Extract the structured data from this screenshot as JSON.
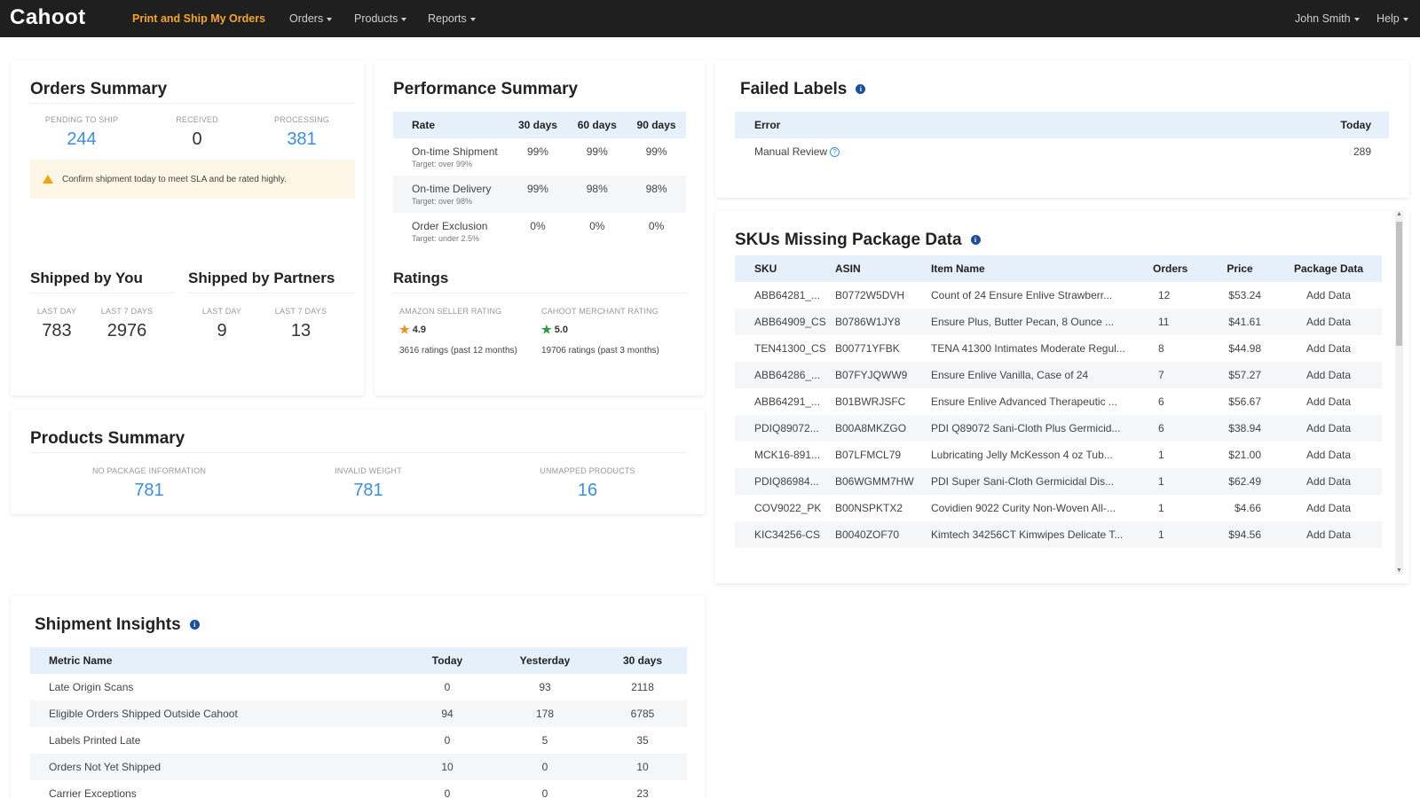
{
  "nav": {
    "logo": "Cahoot",
    "active": "Print and Ship My Orders",
    "orders": "Orders",
    "products": "Products",
    "reports": "Reports",
    "user": "John Smith",
    "help": "Help"
  },
  "orders_summary": {
    "title": "Orders Summary",
    "pending_label": "PENDING TO SHIP",
    "pending_value": "244",
    "received_label": "RECEIVED",
    "received_value": "0",
    "processing_label": "PROCESSING",
    "processing_value": "381",
    "alert": "Confirm shipment today to meet SLA and be rated highly."
  },
  "shipped": {
    "you_title": "Shipped by You",
    "partners_title": "Shipped by Partners",
    "last_day_label": "LAST DAY",
    "last_7_label": "LAST 7 DAYS",
    "you_last_day": "783",
    "you_last_7": "2976",
    "partners_last_day": "9",
    "partners_last_7": "13"
  },
  "performance": {
    "title": "Performance Summary",
    "headers": [
      "Rate",
      "30 days",
      "60 days",
      "90 days"
    ],
    "rows": [
      {
        "name": "On-time Shipment",
        "target": "Target: over 99%",
        "d30": "99%",
        "d60": "99%",
        "d90": "99%"
      },
      {
        "name": "On-time Delivery",
        "target": "Target: over 98%",
        "d30": "99%",
        "d60": "98%",
        "d90": "98%"
      },
      {
        "name": "Order Exclusion",
        "target": "Target: under 2.5%",
        "d30": "0%",
        "d60": "0%",
        "d90": "0%"
      }
    ]
  },
  "ratings": {
    "title": "Ratings",
    "amazon_label": "AMAZON SELLER RATING",
    "amazon_value": "4.9",
    "amazon_count": "3616 ratings (past 12 months)",
    "cahoot_label": "CAHOOT MERCHANT RATING",
    "cahoot_value": "5.0",
    "cahoot_count": "19706 ratings (past 3 months)"
  },
  "failed_labels": {
    "title": "Failed Labels",
    "headers": [
      "Error",
      "Today"
    ],
    "row_label": "Manual Review",
    "row_value": "289"
  },
  "skus_missing": {
    "title": "SKUs Missing Package Data",
    "headers": [
      "SKU",
      "ASIN",
      "Item Name",
      "Orders",
      "Price",
      "Package Data"
    ],
    "action": "Add Data",
    "rows": [
      {
        "sku": "ABB64281_...",
        "asin": "B0772W5DVH",
        "name": "Count of 24 Ensure Enlive Strawberr...",
        "orders": "12",
        "price": "$53.24"
      },
      {
        "sku": "ABB64909_CS",
        "asin": "B0786W1JY8",
        "name": "Ensure Plus, Butter Pecan, 8 Ounce ...",
        "orders": "11",
        "price": "$41.61"
      },
      {
        "sku": "TEN41300_CS",
        "asin": "B00771YFBK",
        "name": "TENA 41300 Intimates Moderate Regul...",
        "orders": "8",
        "price": "$44.98"
      },
      {
        "sku": "ABB64286_...",
        "asin": "B07FYJQWW9",
        "name": "Ensure Enlive Vanilla, Case of 24",
        "orders": "7",
        "price": "$57.27"
      },
      {
        "sku": "ABB64291_...",
        "asin": "B01BWRJSFC",
        "name": "Ensure Enlive Advanced Therapeutic ...",
        "orders": "6",
        "price": "$56.67"
      },
      {
        "sku": "PDIQ89072...",
        "asin": "B00A8MKZGO",
        "name": "PDI Q89072 Sani-Cloth Plus Germicid...",
        "orders": "6",
        "price": "$38.94"
      },
      {
        "sku": "MCK16-891...",
        "asin": "B07LFMCL79",
        "name": "Lubricating Jelly McKesson 4 oz Tub...",
        "orders": "1",
        "price": "$21.00"
      },
      {
        "sku": "PDIQ86984...",
        "asin": "B06WGMM7HW",
        "name": "PDI Super Sani-Cloth Germicidal Dis...",
        "orders": "1",
        "price": "$62.49"
      },
      {
        "sku": "COV9022_PK",
        "asin": "B00NSPKTX2",
        "name": "Covidien 9022 Curity Non-Woven All-...",
        "orders": "1",
        "price": "$4.66"
      },
      {
        "sku": "KIC34256-CS",
        "asin": "B0040ZOF70",
        "name": "Kimtech 34256CT Kimwipes Delicate T...",
        "orders": "1",
        "price": "$94.56"
      }
    ]
  },
  "products_summary": {
    "title": "Products Summary",
    "no_pkg_label": "NO PACKAGE INFORMATION",
    "no_pkg_value": "781",
    "invalid_label": "INVALID WEIGHT",
    "invalid_value": "781",
    "unmapped_label": "UNMAPPED PRODUCTS",
    "unmapped_value": "16"
  },
  "shipment_insights": {
    "title": "Shipment Insights",
    "headers": [
      "Metric Name",
      "Today",
      "Yesterday",
      "30 days"
    ],
    "rows": [
      {
        "name": "Late Origin Scans",
        "today": "0",
        "yesterday": "93",
        "d30": "2118"
      },
      {
        "name": "Eligible Orders Shipped Outside Cahoot",
        "today": "94",
        "yesterday": "178",
        "d30": "6785"
      },
      {
        "name": "Labels Printed Late",
        "today": "0",
        "yesterday": "5",
        "d30": "35"
      },
      {
        "name": "Orders Not Yet Shipped",
        "today": "10",
        "yesterday": "0",
        "d30": "10"
      },
      {
        "name": "Carrier Exceptions",
        "today": "0",
        "yesterday": "0",
        "d30": "23"
      }
    ]
  }
}
